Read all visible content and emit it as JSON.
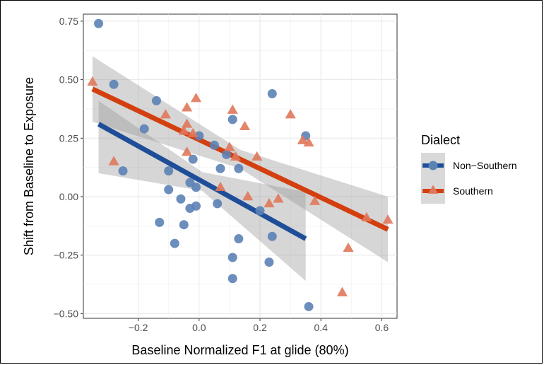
{
  "chart_data": {
    "type": "scatter",
    "title": "",
    "xlabel": "Baseline Normalized F1 at glide (80%)",
    "ylabel": "Shift from Baseline to Exposure",
    "xlim": [
      -0.38,
      0.65
    ],
    "ylim": [
      -0.52,
      0.78
    ],
    "x_ticks": [
      -0.2,
      0.0,
      0.2,
      0.4,
      0.6
    ],
    "x_tick_labels": [
      "−0.2",
      "0.0",
      "0.2",
      "0.4",
      "0.6"
    ],
    "y_ticks": [
      -0.5,
      -0.25,
      0.0,
      0.25,
      0.5,
      0.75
    ],
    "y_tick_labels": [
      "−0.50",
      "−0.25",
      "0.00",
      "0.25",
      "0.50",
      "0.75"
    ],
    "grid": true,
    "legend": {
      "title": "Dialect",
      "position": "right",
      "entries": [
        "Non−Southern",
        "Southern"
      ]
    },
    "series": [
      {
        "name": "Non−Southern",
        "color": "#1f4e99",
        "point_color": "#5b82b5",
        "marker": "circle",
        "points": [
          [
            -0.33,
            0.74
          ],
          [
            -0.28,
            0.48
          ],
          [
            -0.25,
            0.11
          ],
          [
            -0.18,
            0.29
          ],
          [
            -0.14,
            0.41
          ],
          [
            -0.13,
            -0.11
          ],
          [
            -0.1,
            0.11
          ],
          [
            -0.1,
            0.03
          ],
          [
            -0.08,
            -0.2
          ],
          [
            -0.06,
            -0.01
          ],
          [
            -0.05,
            -0.12
          ],
          [
            -0.03,
            0.06
          ],
          [
            -0.03,
            -0.05
          ],
          [
            -0.02,
            0.16
          ],
          [
            -0.01,
            -0.04
          ],
          [
            -0.01,
            0.04
          ],
          [
            0.0,
            0.26
          ],
          [
            0.05,
            0.22
          ],
          [
            0.06,
            -0.03
          ],
          [
            0.07,
            0.12
          ],
          [
            0.09,
            0.18
          ],
          [
            0.11,
            0.33
          ],
          [
            0.11,
            -0.26
          ],
          [
            0.11,
            -0.35
          ],
          [
            0.13,
            0.12
          ],
          [
            0.13,
            -0.18
          ],
          [
            0.2,
            -0.06
          ],
          [
            0.23,
            -0.28
          ],
          [
            0.24,
            0.44
          ],
          [
            0.24,
            -0.17
          ],
          [
            0.35,
            0.26
          ],
          [
            0.36,
            -0.47
          ]
        ],
        "fit": {
          "x": [
            -0.33,
            0.35
          ],
          "y": [
            0.31,
            -0.18
          ]
        },
        "ci_lower": [
          0.1,
          -0.36
        ],
        "ci_upper": [
          0.41,
          0.02
        ]
      },
      {
        "name": "Southern",
        "color": "#d33f0e",
        "point_color": "#e0785b",
        "marker": "triangle",
        "points": [
          [
            -0.35,
            0.49
          ],
          [
            -0.28,
            0.15
          ],
          [
            -0.11,
            0.35
          ],
          [
            -0.04,
            0.38
          ],
          [
            -0.04,
            0.31
          ],
          [
            -0.05,
            0.28
          ],
          [
            -0.04,
            0.19
          ],
          [
            -0.01,
            0.42
          ],
          [
            -0.02,
            0.27
          ],
          [
            0.07,
            0.04
          ],
          [
            0.1,
            0.21
          ],
          [
            0.11,
            0.37
          ],
          [
            0.12,
            0.17
          ],
          [
            0.15,
            0.3
          ],
          [
            0.16,
            0.0
          ],
          [
            0.19,
            0.17
          ],
          [
            0.23,
            -0.03
          ],
          [
            0.26,
            -0.01
          ],
          [
            0.3,
            0.35
          ],
          [
            0.34,
            0.24
          ],
          [
            0.36,
            0.23
          ],
          [
            0.38,
            -0.02
          ],
          [
            0.47,
            -0.41
          ],
          [
            0.49,
            -0.22
          ],
          [
            0.55,
            -0.09
          ],
          [
            0.62,
            -0.1
          ]
        ],
        "fit": {
          "x": [
            -0.35,
            0.62
          ],
          "y": [
            0.46,
            -0.14
          ]
        },
        "ci_lower": [
          0.32,
          -0.28
        ],
        "ci_upper": [
          0.6,
          0.0
        ]
      }
    ]
  }
}
